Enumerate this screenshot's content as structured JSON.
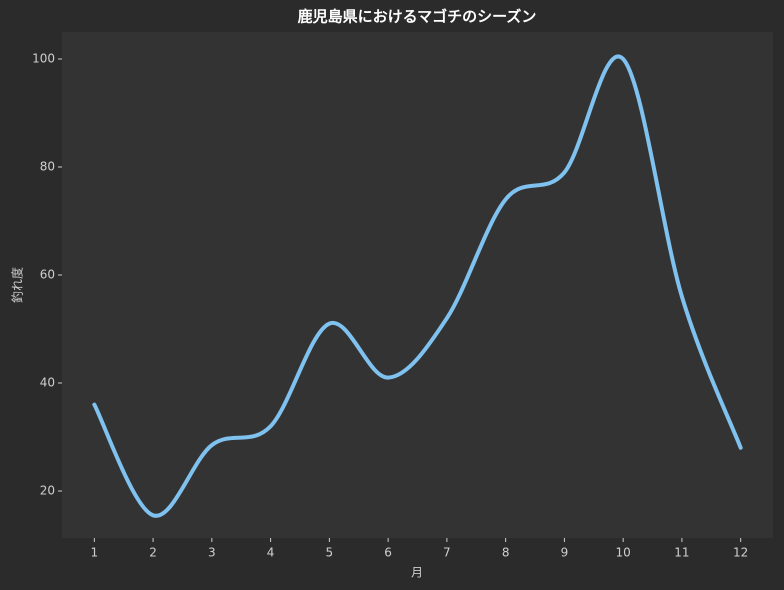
{
  "chart_data": {
    "type": "line",
    "title": "鹿児島県におけるマゴチのシーズン",
    "x_label": "月",
    "y_label": "釣れ度",
    "x": [
      1,
      2,
      3,
      4,
      5,
      6,
      7,
      8,
      9,
      10,
      11,
      12
    ],
    "series": [
      {
        "name": "釣れ度",
        "color": "#7fc1ef",
        "values": [
          36,
          15.5,
          28.5,
          32,
          51,
          41,
          52,
          74,
          79,
          100,
          56,
          28
        ]
      }
    ],
    "xlim": [
      0.45,
      12.55
    ],
    "ylim": [
      11.3,
      105
    ],
    "xticks": [
      1,
      2,
      3,
      4,
      5,
      6,
      7,
      8,
      9,
      10,
      11,
      12
    ],
    "yticks": [
      20,
      40,
      60,
      80,
      100
    ],
    "grid": false,
    "smooth": true
  }
}
